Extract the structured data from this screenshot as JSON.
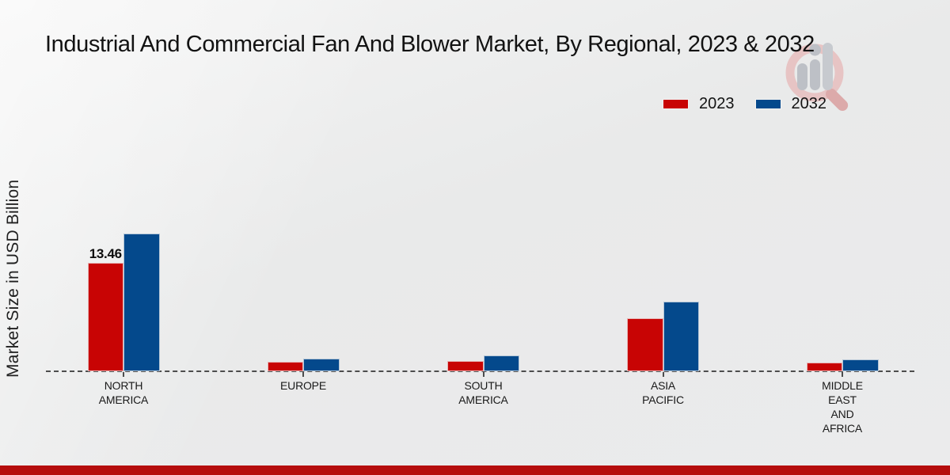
{
  "title": "Industrial And Commercial Fan And Blower Market, By Regional, 2023 & 2032",
  "y_axis_label": "Market Size in USD Billion",
  "footer": {
    "strip_color": "#b50d0d"
  },
  "watermark": {
    "name": "mrfr-magnifier-chart-logo",
    "ring_color": "#e7c4c4",
    "handle_color": "#dcaaaa",
    "bar_color": "#bdc0c6"
  },
  "chart_data": {
    "type": "bar",
    "categories": [
      "NORTH AMERICA",
      "EUROPE",
      "SOUTH AMERICA",
      "ASIA PACIFIC",
      "MIDDLE EAST AND AFRICA"
    ],
    "category_lines": [
      [
        "NORTH",
        "AMERICA"
      ],
      [
        "EUROPE"
      ],
      [
        "SOUTH",
        "AMERICA"
      ],
      [
        "ASIA",
        "PACIFIC"
      ],
      [
        "MIDDLE",
        "EAST",
        "AND",
        "AFRICA"
      ]
    ],
    "series": [
      {
        "name": "2023",
        "color": "#c80404",
        "values": [
          13.46,
          1.15,
          1.3,
          6.6,
          1.05
        ]
      },
      {
        "name": "2032",
        "color": "#04498c",
        "values": [
          17.1,
          1.55,
          1.95,
          8.65,
          1.5
        ]
      }
    ],
    "value_labels": [
      {
        "series": "2023",
        "category": "NORTH AMERICA",
        "text": "13.46"
      }
    ],
    "title": "Industrial And Commercial Fan And Blower Market, By Regional, 2023 & 2032",
    "xlabel": "",
    "ylabel": "Market Size in USD Billion",
    "ylim": [
      0,
      18
    ],
    "grid": false,
    "legend_position": "top-right",
    "baseline_style": "dashed"
  }
}
